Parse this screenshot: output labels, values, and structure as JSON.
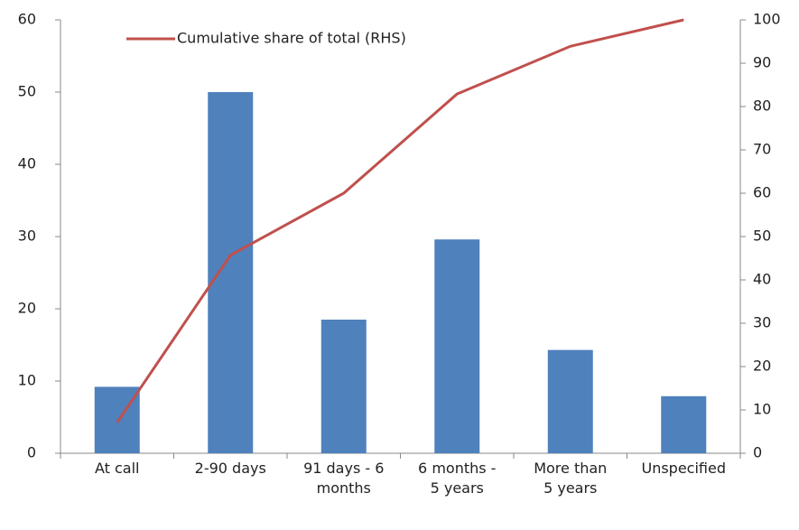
{
  "chart_data": {
    "type": "bar",
    "categories": [
      "At call",
      "2-90 days",
      "91 days - 6\nmonths",
      "6 months -\n5 years",
      "More than\n5 years",
      "Unspecified"
    ],
    "series": [
      {
        "color": "#4f81bd",
        "values": [
          9.2,
          50,
          18.5,
          29.6,
          14.3,
          7.9
        ]
      },
      {
        "name": "Cumulative share of total (RHS)",
        "type": "line",
        "axis": "y2",
        "color": "#c0504d",
        "values": [
          7.1,
          45.7,
          60.0,
          82.9,
          93.9,
          100
        ]
      }
    ],
    "ylim": [
      0,
      60
    ],
    "yticks": [
      0,
      10,
      20,
      30,
      40,
      50,
      60
    ],
    "y2lim": [
      0,
      100
    ],
    "y2ticks": [
      0,
      10,
      20,
      30,
      40,
      50,
      60,
      70,
      80,
      90,
      100
    ],
    "grid": false,
    "legend": "top-left"
  }
}
